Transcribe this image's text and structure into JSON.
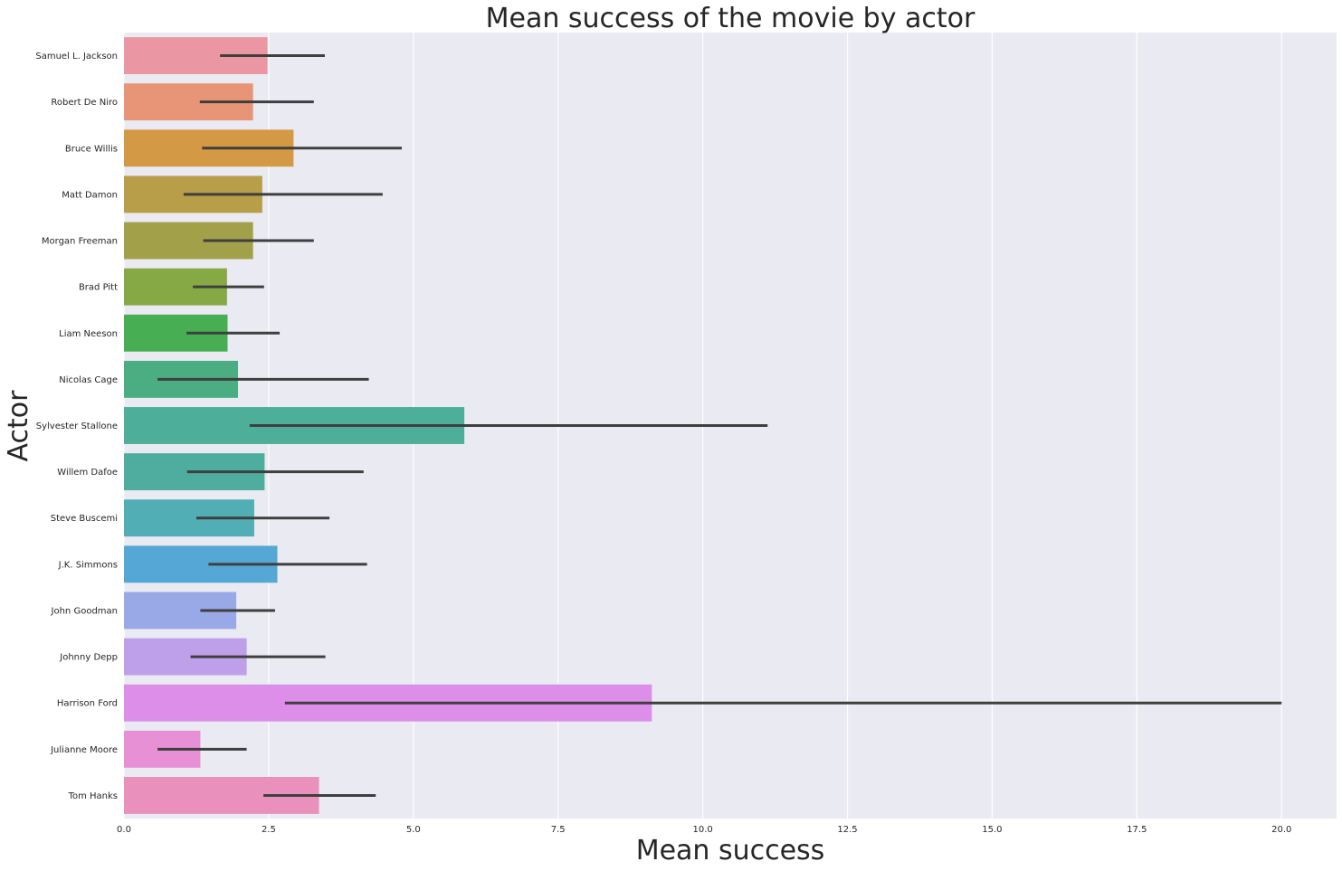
{
  "chart_data": {
    "type": "bar",
    "orientation": "horizontal",
    "title": "Mean success of the movie by actor",
    "xlabel": "Mean success",
    "ylabel": "Actor",
    "xlim": [
      0,
      20.95
    ],
    "xticks": [
      0.0,
      2.5,
      5.0,
      7.5,
      10.0,
      12.5,
      15.0,
      17.5,
      20.0
    ],
    "xtick_labels": [
      "0.0",
      "2.5",
      "5.0",
      "7.5",
      "10.0",
      "12.5",
      "15.0",
      "17.5",
      "20.0"
    ],
    "grid": true,
    "categories": [
      "Samuel L. Jackson",
      "Robert De Niro",
      "Bruce Willis",
      "Matt Damon",
      "Morgan Freeman",
      "Brad Pitt",
      "Liam Neeson",
      "Nicolas Cage",
      "Sylvester Stallone",
      "Willem Dafoe",
      "Steve Buscemi",
      "J.K. Simmons",
      "John Goodman",
      "Johnny Depp",
      "Harrison Ford",
      "Julianne Moore",
      "Tom Hanks"
    ],
    "values": [
      2.48,
      2.23,
      2.93,
      2.39,
      2.23,
      1.78,
      1.79,
      1.97,
      5.88,
      2.43,
      2.25,
      2.65,
      1.94,
      2.12,
      9.12,
      1.32,
      3.37
    ],
    "ci_low": [
      1.66,
      1.31,
      1.35,
      1.03,
      1.37,
      1.19,
      1.08,
      0.58,
      2.17,
      1.09,
      1.25,
      1.46,
      1.32,
      1.15,
      2.78,
      0.58,
      2.41
    ],
    "ci_high": [
      3.47,
      3.28,
      4.8,
      4.47,
      3.28,
      2.42,
      2.69,
      4.23,
      11.12,
      4.14,
      3.55,
      4.2,
      2.61,
      3.48,
      20.0,
      2.12,
      4.35
    ],
    "colors": [
      "#ea96a3",
      "#e79576",
      "#d49944",
      "#b89e49",
      "#a3a04a",
      "#86a945",
      "#48ae54",
      "#4bad82",
      "#4dae9a",
      "#4fad9f",
      "#50aeb4",
      "#55a7d5",
      "#99a8e7",
      "#bea0ea",
      "#dd8ee8",
      "#e790d6",
      "#e990bd"
    ]
  }
}
